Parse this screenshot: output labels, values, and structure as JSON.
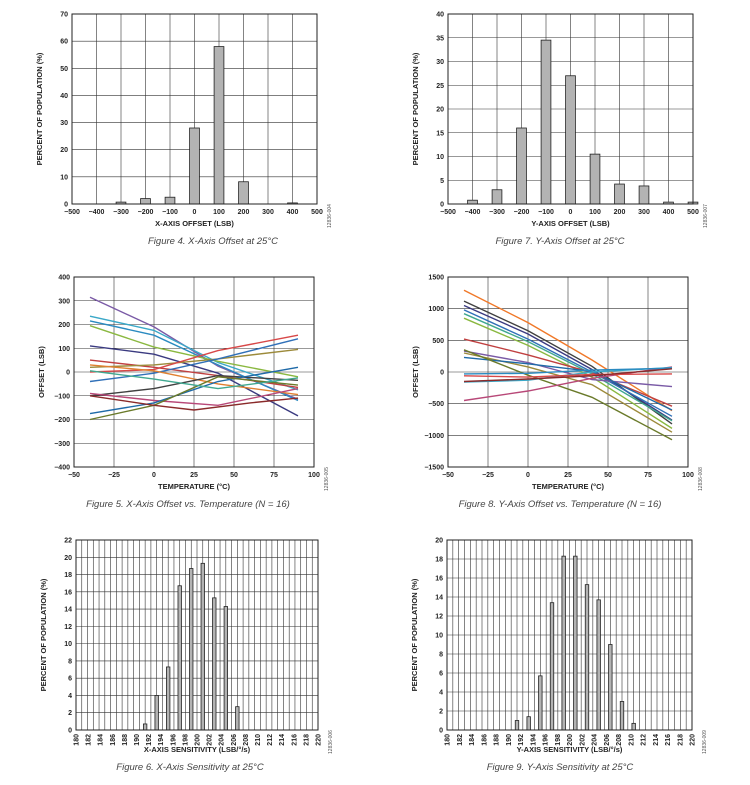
{
  "chart_data": [
    {
      "id": "fig4",
      "type": "bar",
      "caption": "Figure 4. X-Axis Offset at 25°C",
      "xlabel": "X-AXIS OFFSET (LSB)",
      "ylabel": "PERCENT OF POPULATION (%)",
      "side_id": "12836-004",
      "xlim": [
        -500,
        500
      ],
      "ylim": [
        0,
        70
      ],
      "xticks": [
        "−500",
        "−400",
        "−300",
        "−200",
        "−100",
        "0",
        "100",
        "200",
        "300",
        "400",
        "500"
      ],
      "yticks": [
        "0",
        "10",
        "20",
        "30",
        "40",
        "50",
        "60",
        "70"
      ],
      "bar_width": 40,
      "x": [
        -300,
        -200,
        -100,
        0,
        100,
        200,
        400
      ],
      "values": [
        0.7,
        2.0,
        2.5,
        28.0,
        58.0,
        8.2,
        0.4
      ]
    },
    {
      "id": "fig7",
      "type": "bar",
      "caption": "Figure 7. Y-Axis Offset at 25°C",
      "xlabel": "Y-AXIS OFFSET (LSB)",
      "ylabel": "PERCENT OF POPULATION (%)",
      "side_id": "12836-007",
      "xlim": [
        -500,
        500
      ],
      "ylim": [
        0,
        40
      ],
      "xticks": [
        "−500",
        "−400",
        "−300",
        "−200",
        "−100",
        "0",
        "100",
        "200",
        "300",
        "400",
        "500"
      ],
      "yticks": [
        "0",
        "5",
        "10",
        "15",
        "20",
        "25",
        "30",
        "35",
        "40"
      ],
      "bar_width": 40,
      "x": [
        -400,
        -300,
        -200,
        -100,
        0,
        100,
        200,
        300,
        400,
        500
      ],
      "values": [
        0.8,
        3.0,
        16.0,
        34.5,
        27.0,
        10.5,
        4.2,
        3.8,
        0.4,
        0.4
      ]
    },
    {
      "id": "fig5",
      "type": "line",
      "caption": "Figure 5. X-Axis Offset vs. Temperature (N = 16)",
      "xlabel": "TEMPERATURE (°C)",
      "ylabel": "OFFSET (LSB)",
      "side_id": "12836-005",
      "xlim": [
        -50,
        100
      ],
      "ylim": [
        -400,
        400
      ],
      "xticks": [
        "−50",
        "−25",
        "0",
        "25",
        "50",
        "75",
        "100"
      ],
      "yticks": [
        "−400",
        "−300",
        "−200",
        "−100",
        "0",
        "100",
        "200",
        "300",
        "400"
      ],
      "series": [
        {
          "color": "#7a5aa6",
          "points": [
            [
              -40,
              315
            ],
            [
              0,
              190
            ],
            [
              40,
              25
            ],
            [
              90,
              -115
            ]
          ]
        },
        {
          "color": "#3aa8c8",
          "points": [
            [
              -40,
              235
            ],
            [
              0,
              175
            ],
            [
              40,
              40
            ],
            [
              90,
              -75
            ]
          ]
        },
        {
          "color": "#2a8ac0",
          "points": [
            [
              -40,
              215
            ],
            [
              0,
              155
            ],
            [
              40,
              30
            ],
            [
              90,
              -120
            ]
          ]
        },
        {
          "color": "#8ab840",
          "points": [
            [
              -40,
              195
            ],
            [
              0,
              105
            ],
            [
              40,
              45
            ],
            [
              90,
              -20
            ]
          ]
        },
        {
          "color": "#3a3a80",
          "points": [
            [
              -40,
              110
            ],
            [
              0,
              75
            ],
            [
              40,
              -5
            ],
            [
              90,
              -185
            ]
          ]
        },
        {
          "color": "#c04040",
          "points": [
            [
              -40,
              50
            ],
            [
              0,
              20
            ],
            [
              40,
              -15
            ],
            [
              90,
              -65
            ]
          ]
        },
        {
          "color": "#9c8a3a",
          "points": [
            [
              -40,
              20
            ],
            [
              0,
              30
            ],
            [
              40,
              55
            ],
            [
              90,
              95
            ]
          ]
        },
        {
          "color": "#d84848",
          "points": [
            [
              -40,
              0
            ],
            [
              0,
              10
            ],
            [
              40,
              90
            ],
            [
              90,
              155
            ]
          ]
        },
        {
          "color": "#3070b8",
          "points": [
            [
              -40,
              -40
            ],
            [
              0,
              -5
            ],
            [
              40,
              55
            ],
            [
              90,
              140
            ]
          ]
        },
        {
          "color": "#e08030",
          "points": [
            [
              -40,
              30
            ],
            [
              0,
              5
            ],
            [
              40,
              -50
            ],
            [
              90,
              -95
            ]
          ]
        },
        {
          "color": "#404040",
          "points": [
            [
              -40,
              -100
            ],
            [
              0,
              -70
            ],
            [
              40,
              -15
            ],
            [
              90,
              -35
            ]
          ]
        },
        {
          "color": "#b84878",
          "points": [
            [
              -40,
              -90
            ],
            [
              0,
              -120
            ],
            [
              40,
              -140
            ],
            [
              90,
              -70
            ]
          ]
        },
        {
          "color": "#1f6aa8",
          "points": [
            [
              -40,
              -175
            ],
            [
              0,
              -130
            ],
            [
              40,
              -40
            ],
            [
              90,
              20
            ]
          ]
        },
        {
          "color": "#6a7a2a",
          "points": [
            [
              -40,
              -200
            ],
            [
              0,
              -140
            ],
            [
              40,
              -20
            ],
            [
              90,
              -55
            ]
          ]
        },
        {
          "color": "#8a2a2a",
          "points": [
            [
              -40,
              -100
            ],
            [
              0,
              -140
            ],
            [
              25,
              -160
            ],
            [
              60,
              -130
            ],
            [
              90,
              -110
            ]
          ]
        },
        {
          "color": "#40a890",
          "points": [
            [
              -40,
              5
            ],
            [
              0,
              -30
            ],
            [
              40,
              -70
            ],
            [
              90,
              -25
            ]
          ]
        }
      ]
    },
    {
      "id": "fig8",
      "type": "line",
      "caption": "Figure 8. Y-Axis Offset vs. Temperature (N = 16)",
      "xlabel": "TEMPERATURE (°C)",
      "ylabel": "OFFSET (LSB)",
      "side_id": "12836-008",
      "xlim": [
        -50,
        100
      ],
      "ylim": [
        -1500,
        1500
      ],
      "xticks": [
        "−50",
        "−25",
        "0",
        "25",
        "50",
        "75",
        "100"
      ],
      "yticks": [
        "−1500",
        "−1000",
        "−500",
        "0",
        "500",
        "1000",
        "1500"
      ],
      "series": [
        {
          "color": "#f07828",
          "points": [
            [
              -40,
              1290
            ],
            [
              0,
              780
            ],
            [
              40,
              190
            ],
            [
              90,
              -610
            ]
          ]
        },
        {
          "color": "#404040",
          "points": [
            [
              -40,
              1120
            ],
            [
              0,
              650
            ],
            [
              40,
              90
            ],
            [
              90,
              -820
            ]
          ]
        },
        {
          "color": "#3a3a80",
          "points": [
            [
              -40,
              1050
            ],
            [
              0,
              600
            ],
            [
              40,
              40
            ],
            [
              90,
              -760
            ]
          ]
        },
        {
          "color": "#3070b8",
          "points": [
            [
              -40,
              980
            ],
            [
              0,
              520
            ],
            [
              40,
              0
            ],
            [
              90,
              -700
            ]
          ]
        },
        {
          "color": "#40a890",
          "points": [
            [
              -40,
              920
            ],
            [
              0,
              480
            ],
            [
              40,
              -30
            ],
            [
              90,
              -770
            ]
          ]
        },
        {
          "color": "#8ab840",
          "points": [
            [
              -40,
              850
            ],
            [
              0,
              420
            ],
            [
              40,
              -80
            ],
            [
              90,
              -890
            ]
          ]
        },
        {
          "color": "#c04040",
          "points": [
            [
              -40,
              520
            ],
            [
              0,
              270
            ],
            [
              40,
              -10
            ],
            [
              90,
              -540
            ]
          ]
        },
        {
          "color": "#9c8a3a",
          "points": [
            [
              -40,
              300
            ],
            [
              0,
              80
            ],
            [
              40,
              -200
            ],
            [
              90,
              -950
            ]
          ]
        },
        {
          "color": "#7a5aa6",
          "points": [
            [
              -40,
              330
            ],
            [
              0,
              150
            ],
            [
              40,
              -120
            ],
            [
              90,
              -230
            ]
          ]
        },
        {
          "color": "#1f6aa8",
          "points": [
            [
              -40,
              230
            ],
            [
              0,
              130
            ],
            [
              40,
              10
            ],
            [
              90,
              -600
            ]
          ]
        },
        {
          "color": "#6a7a2a",
          "points": [
            [
              -40,
              350
            ],
            [
              0,
              -50
            ],
            [
              40,
              -400
            ],
            [
              90,
              -1070
            ]
          ]
        },
        {
          "color": "#b84878",
          "points": [
            [
              -40,
              -450
            ],
            [
              0,
              -300
            ],
            [
              40,
              -100
            ],
            [
              90,
              80
            ]
          ]
        },
        {
          "color": "#3aa8c8",
          "points": [
            [
              -40,
              -160
            ],
            [
              0,
              -130
            ],
            [
              40,
              0
            ],
            [
              90,
              70
            ]
          ]
        },
        {
          "color": "#2a8ac0",
          "points": [
            [
              -40,
              -30
            ],
            [
              0,
              -20
            ],
            [
              40,
              30
            ],
            [
              90,
              60
            ]
          ]
        },
        {
          "color": "#d84848",
          "points": [
            [
              -40,
              -60
            ],
            [
              0,
              -80
            ],
            [
              40,
              -40
            ],
            [
              90,
              -30
            ]
          ]
        },
        {
          "color": "#8a2a2a",
          "points": [
            [
              -40,
              -150
            ],
            [
              0,
              -110
            ],
            [
              40,
              -60
            ],
            [
              90,
              50
            ]
          ]
        }
      ]
    },
    {
      "id": "fig6",
      "type": "bar",
      "caption": "Figure 6. X-Axis Sensitivity at 25°C",
      "xlabel": "X-AXIS SENSITIVITY (LSB/°/s)",
      "ylabel": "PERCENT OF POPULATION (%)",
      "side_id": "12836-006",
      "xlim": [
        179,
        221
      ],
      "ylim": [
        0,
        22
      ],
      "xticks": [
        "180",
        "182",
        "184",
        "186",
        "188",
        "190",
        "192",
        "194",
        "196",
        "198",
        "200",
        "202",
        "204",
        "206",
        "208",
        "210",
        "212",
        "214",
        "216",
        "218",
        "220"
      ],
      "yticks": [
        "0",
        "2",
        "4",
        "6",
        "8",
        "10",
        "12",
        "14",
        "16",
        "18",
        "20",
        "22"
      ],
      "bar_width": 0.6,
      "x": [
        191,
        192,
        193,
        194,
        195,
        196,
        197,
        198,
        199,
        200,
        201,
        202,
        203,
        204,
        205,
        206,
        207
      ],
      "values": [
        0.7,
        0,
        4.0,
        0,
        7.3,
        0,
        16.7,
        0,
        18.7,
        0,
        19.3,
        0,
        15.3,
        0,
        14.3,
        0,
        2.7
      ]
    },
    {
      "id": "fig9",
      "type": "bar",
      "caption": "Figure 9. Y-Axis Sensitivity at 25°C",
      "xlabel": "Y-AXIS SENSITIVITY (LSB/°/s)",
      "ylabel": "PERCENT OF POPULATION (%)",
      "side_id": "12836-009",
      "xlim": [
        179,
        221
      ],
      "ylim": [
        0,
        20
      ],
      "xticks": [
        "180",
        "182",
        "184",
        "186",
        "188",
        "190",
        "192",
        "194",
        "196",
        "198",
        "200",
        "202",
        "204",
        "206",
        "208",
        "210",
        "212",
        "214",
        "216",
        "218",
        "220"
      ],
      "yticks": [
        "0",
        "2",
        "4",
        "6",
        "8",
        "10",
        "12",
        "14",
        "16",
        "18",
        "20"
      ],
      "bar_width": 0.6,
      "x": [
        190,
        191,
        192,
        193,
        194,
        195,
        196,
        197,
        198,
        199,
        200,
        201,
        202,
        203,
        204,
        205,
        206,
        207,
        208,
        209,
        210,
        211
      ],
      "values": [
        0,
        1.0,
        0,
        1.4,
        0,
        5.7,
        0,
        13.4,
        0,
        18.3,
        0,
        18.3,
        0,
        15.3,
        0,
        13.7,
        0,
        9.0,
        0,
        3.0,
        0,
        0.7
      ]
    }
  ]
}
